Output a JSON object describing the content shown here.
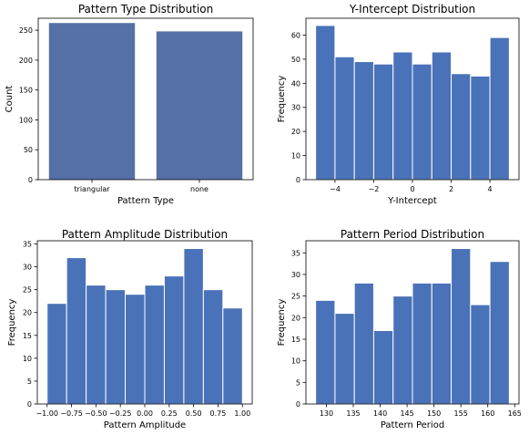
{
  "chart_data": [
    {
      "type": "bar",
      "title": "Pattern Type Distribution",
      "xlabel": "Pattern Type",
      "ylabel": "Count",
      "categories": [
        "triangular",
        "none"
      ],
      "values": [
        262,
        248
      ],
      "ylim": [
        0,
        270
      ],
      "yticks": [
        0,
        50,
        100,
        150,
        200,
        250
      ],
      "ytick_labels": [
        "0",
        "50",
        "100",
        "150",
        "200",
        "250"
      ],
      "color": "#5470a6",
      "grid": false
    },
    {
      "type": "bar",
      "title": "Y-Intercept Distribution",
      "xlabel": "Y-Intercept",
      "ylabel": "Frequency",
      "bin_edges": [
        -5,
        -4,
        -3,
        -2,
        -1,
        0,
        1,
        2,
        3,
        4,
        5
      ],
      "values": [
        64,
        51,
        49,
        48,
        53,
        48,
        53,
        44,
        43,
        59
      ],
      "xlim": [
        -5.5,
        5.5
      ],
      "ylim": [
        0,
        67
      ],
      "xticks": [
        -4,
        -2,
        0,
        2,
        4
      ],
      "xtick_labels": [
        "−4",
        "−2",
        "0",
        "2",
        "4"
      ],
      "yticks": [
        0,
        10,
        20,
        30,
        40,
        50,
        60
      ],
      "ytick_labels": [
        "0",
        "10",
        "20",
        "30",
        "40",
        "50",
        "60"
      ],
      "color": "#4a72b8",
      "grid": false
    },
    {
      "type": "bar",
      "title": "Pattern Amplitude Distribution",
      "xlabel": "Pattern Amplitude",
      "ylabel": "Frequency",
      "bin_edges": [
        -1.0,
        -0.8,
        -0.6,
        -0.4,
        -0.2,
        0.0,
        0.2,
        0.4,
        0.6,
        0.8,
        1.0
      ],
      "values": [
        22,
        32,
        26,
        25,
        24,
        26,
        28,
        34,
        25,
        21
      ],
      "xlim": [
        -1.1,
        1.1
      ],
      "ylim": [
        0,
        35.7
      ],
      "xticks": [
        -1.0,
        -0.75,
        -0.5,
        -0.25,
        0.0,
        0.25,
        0.5,
        0.75,
        1.0
      ],
      "xtick_labels": [
        "−1.00",
        "−0.75",
        "−0.50",
        "−0.25",
        "0.00",
        "0.25",
        "0.50",
        "0.75",
        "1.00"
      ],
      "yticks": [
        0,
        5,
        10,
        15,
        20,
        25,
        30,
        35
      ],
      "ytick_labels": [
        "0",
        "5",
        "10",
        "15",
        "20",
        "25",
        "30",
        "35"
      ],
      "color": "#4a72b8",
      "grid": false
    },
    {
      "type": "bar",
      "title": "Pattern Period Distribution",
      "xlabel": "Pattern Period",
      "ylabel": "Frequency",
      "bin_edges": [
        128,
        131.6,
        135.2,
        138.8,
        142.4,
        146,
        149.6,
        153.2,
        156.8,
        160.4,
        164
      ],
      "values": [
        24,
        21,
        28,
        17,
        25,
        28,
        28,
        36,
        23,
        33
      ],
      "xlim": [
        126.2,
        165.8
      ],
      "ylim": [
        0,
        37.8
      ],
      "xticks": [
        130,
        135,
        140,
        145,
        150,
        155,
        160,
        165
      ],
      "xtick_labels": [
        "130",
        "135",
        "140",
        "145",
        "150",
        "155",
        "160",
        "165"
      ],
      "yticks": [
        0,
        5,
        10,
        15,
        20,
        25,
        30,
        35
      ],
      "ytick_labels": [
        "0",
        "5",
        "10",
        "15",
        "20",
        "25",
        "30",
        "35"
      ],
      "color": "#4a72b8",
      "grid": false
    }
  ]
}
